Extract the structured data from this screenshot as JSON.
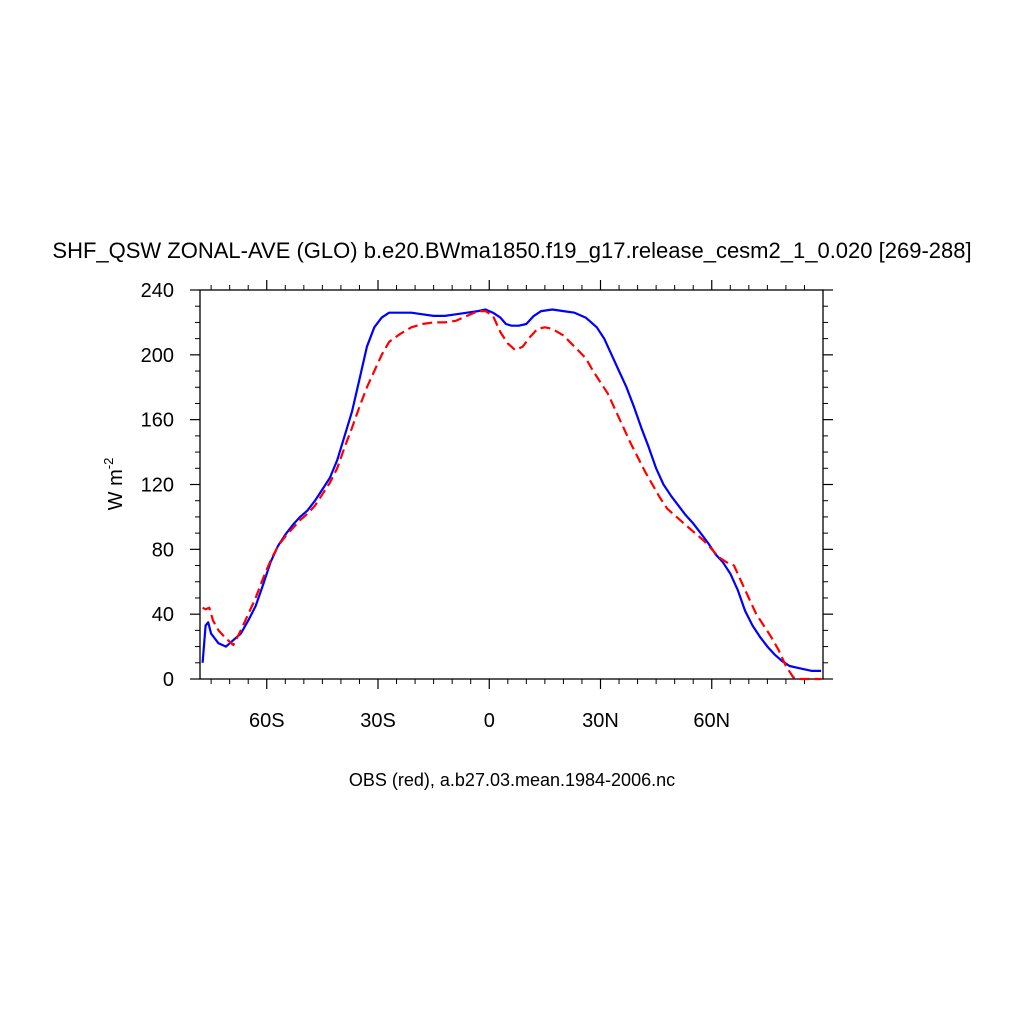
{
  "chart_data": {
    "type": "line",
    "title": "SHF_QSW ZONAL-AVE (GLO) b.e20.BWma1850.f19_g17.release_cesm2_1_0.020 [269-288]",
    "xlabel": "OBS (red), a.b27.03.mean.1984-2006.nc",
    "ylabel": {
      "base": "W m",
      "sup": "-2"
    },
    "xlim": [
      -78,
      90
    ],
    "ylim": [
      0,
      240
    ],
    "xticks": [
      {
        "value": -60,
        "label": "60S"
      },
      {
        "value": -30,
        "label": "30S"
      },
      {
        "value": 0,
        "label": "0"
      },
      {
        "value": 30,
        "label": "30N"
      },
      {
        "value": 60,
        "label": "60N"
      }
    ],
    "yticks": [
      {
        "value": 0,
        "label": "0"
      },
      {
        "value": 40,
        "label": "40"
      },
      {
        "value": 80,
        "label": "80"
      },
      {
        "value": 120,
        "label": "120"
      },
      {
        "value": 160,
        "label": "160"
      },
      {
        "value": 200,
        "label": "200"
      },
      {
        "value": 240,
        "label": "240"
      }
    ],
    "series": [
      {
        "color": "#0000ff",
        "style": "solid",
        "points": [
          [
            -77.3,
            10
          ],
          [
            -76.5,
            33
          ],
          [
            -75.8,
            35
          ],
          [
            -75,
            28
          ],
          [
            -73,
            22
          ],
          [
            -71,
            20
          ],
          [
            -69,
            24
          ],
          [
            -67,
            28
          ],
          [
            -65,
            36
          ],
          [
            -63,
            45
          ],
          [
            -61,
            58
          ],
          [
            -59,
            72
          ],
          [
            -57,
            82
          ],
          [
            -55,
            89
          ],
          [
            -53,
            95
          ],
          [
            -51,
            100
          ],
          [
            -49,
            104
          ],
          [
            -47,
            110
          ],
          [
            -45,
            117
          ],
          [
            -43,
            124
          ],
          [
            -41,
            135
          ],
          [
            -39,
            150
          ],
          [
            -37,
            165
          ],
          [
            -35,
            185
          ],
          [
            -33,
            205
          ],
          [
            -31,
            217
          ],
          [
            -29,
            223
          ],
          [
            -27,
            226
          ],
          [
            -24,
            226
          ],
          [
            -21,
            226
          ],
          [
            -18,
            225
          ],
          [
            -15,
            224
          ],
          [
            -12,
            224
          ],
          [
            -9,
            225
          ],
          [
            -6,
            226
          ],
          [
            -3,
            227
          ],
          [
            -1,
            228
          ],
          [
            1,
            226
          ],
          [
            3,
            223
          ],
          [
            4.5,
            219
          ],
          [
            6,
            218
          ],
          [
            8,
            218
          ],
          [
            10,
            219
          ],
          [
            12,
            224
          ],
          [
            14,
            227
          ],
          [
            17,
            228
          ],
          [
            20,
            227
          ],
          [
            23,
            226
          ],
          [
            26,
            223
          ],
          [
            29,
            217
          ],
          [
            31,
            210
          ],
          [
            33,
            200
          ],
          [
            35,
            190
          ],
          [
            37,
            180
          ],
          [
            39,
            168
          ],
          [
            41,
            155
          ],
          [
            43,
            143
          ],
          [
            45,
            130
          ],
          [
            47,
            120
          ],
          [
            49,
            113
          ],
          [
            51,
            107
          ],
          [
            53,
            101
          ],
          [
            55,
            96
          ],
          [
            57,
            90
          ],
          [
            59,
            84
          ],
          [
            61,
            77
          ],
          [
            63,
            72
          ],
          [
            65,
            65
          ],
          [
            67,
            55
          ],
          [
            69,
            42
          ],
          [
            71,
            33
          ],
          [
            73,
            26
          ],
          [
            75,
            20
          ],
          [
            77,
            15
          ],
          [
            79,
            11
          ],
          [
            81,
            8
          ],
          [
            83,
            7
          ],
          [
            85,
            6
          ],
          [
            87,
            5
          ],
          [
            89.5,
            5
          ]
        ]
      },
      {
        "color": "#ff0000",
        "style": "dashed",
        "points": [
          [
            -77.3,
            44
          ],
          [
            -76.5,
            43
          ],
          [
            -75.5,
            44
          ],
          [
            -74.5,
            36
          ],
          [
            -73,
            30
          ],
          [
            -71,
            25
          ],
          [
            -69,
            21
          ],
          [
            -67,
            30
          ],
          [
            -65,
            40
          ],
          [
            -63,
            50
          ],
          [
            -61,
            62
          ],
          [
            -59,
            73
          ],
          [
            -57,
            82
          ],
          [
            -55,
            88
          ],
          [
            -53,
            93
          ],
          [
            -51,
            98
          ],
          [
            -49,
            102
          ],
          [
            -47,
            107
          ],
          [
            -45,
            114
          ],
          [
            -43,
            121
          ],
          [
            -41,
            130
          ],
          [
            -39,
            143
          ],
          [
            -37,
            155
          ],
          [
            -35,
            168
          ],
          [
            -33,
            180
          ],
          [
            -31,
            190
          ],
          [
            -29,
            200
          ],
          [
            -27,
            208
          ],
          [
            -24,
            213
          ],
          [
            -21,
            217
          ],
          [
            -18,
            219
          ],
          [
            -15,
            220
          ],
          [
            -12,
            220
          ],
          [
            -9,
            221
          ],
          [
            -6,
            224
          ],
          [
            -3,
            227
          ],
          [
            -1,
            227
          ],
          [
            1,
            224
          ],
          [
            3,
            214
          ],
          [
            5,
            207
          ],
          [
            7,
            203
          ],
          [
            9,
            205
          ],
          [
            11,
            211
          ],
          [
            13,
            216
          ],
          [
            15,
            217
          ],
          [
            17,
            216
          ],
          [
            20,
            212
          ],
          [
            23,
            205
          ],
          [
            26,
            198
          ],
          [
            28,
            190
          ],
          [
            30,
            183
          ],
          [
            32,
            176
          ],
          [
            34,
            166
          ],
          [
            36,
            156
          ],
          [
            38,
            146
          ],
          [
            40,
            137
          ],
          [
            42,
            128
          ],
          [
            44,
            120
          ],
          [
            46,
            112
          ],
          [
            48,
            105
          ],
          [
            50,
            101
          ],
          [
            52,
            97
          ],
          [
            54,
            93
          ],
          [
            56,
            89
          ],
          [
            58,
            85
          ],
          [
            60,
            80
          ],
          [
            62,
            75
          ],
          [
            64,
            72
          ],
          [
            66,
            70
          ],
          [
            68,
            60
          ],
          [
            70,
            50
          ],
          [
            72,
            40
          ],
          [
            74,
            33
          ],
          [
            76,
            26
          ],
          [
            78,
            18
          ],
          [
            80,
            8
          ],
          [
            82,
            1
          ],
          [
            84,
            0
          ],
          [
            86,
            0
          ],
          [
            89.5,
            0
          ]
        ]
      }
    ]
  }
}
